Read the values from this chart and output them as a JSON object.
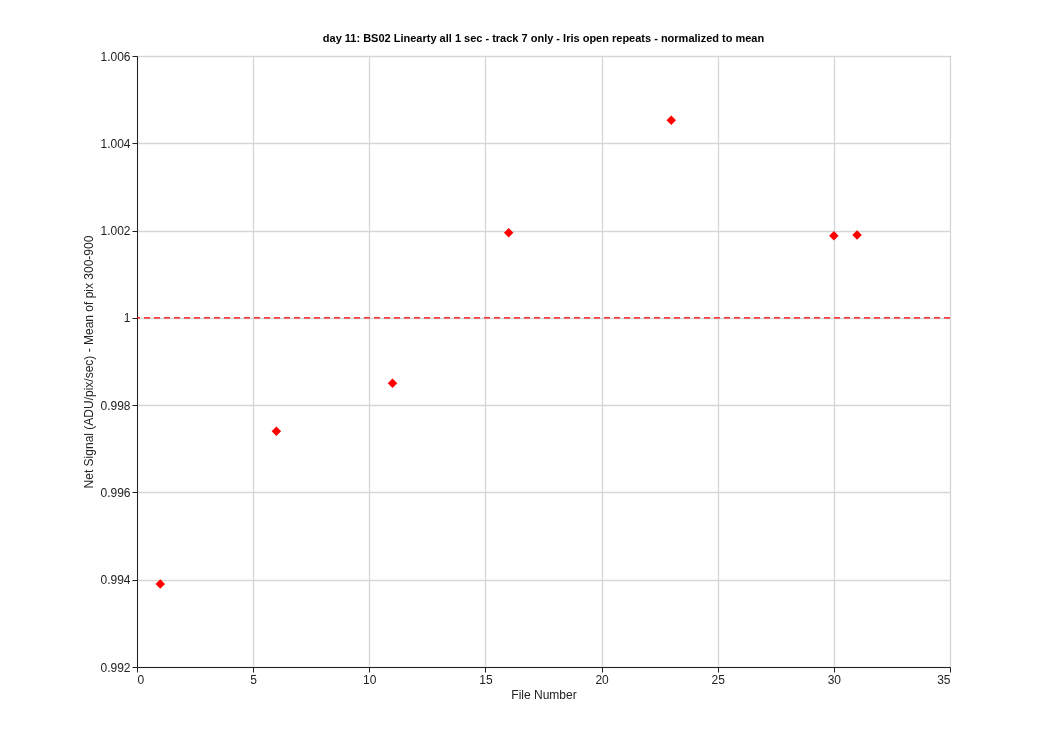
{
  "chart_data": {
    "type": "scatter",
    "title": "day 11: BS02   Linearty all 1 sec - track 7 only - Iris open repeats - normalized to mean",
    "xlabel": "File Number",
    "ylabel": "Net Signal (ADU/pix/sec) - Mean of pix 300-900",
    "x": [
      1,
      6,
      11,
      16,
      23,
      30,
      31
    ],
    "series": [
      {
        "color": "#ff0000",
        "values": [
          0.9939,
          0.9974,
          0.9985,
          1.00195,
          1.00453,
          1.00188,
          1.0019
        ]
      }
    ],
    "xlim": [
      0,
      35
    ],
    "xticks": [
      0,
      5,
      10,
      15,
      20,
      25,
      30,
      35
    ],
    "ylim": [
      0.992,
      1.006
    ],
    "yticks": [
      0.992,
      0.994,
      0.996,
      0.998,
      1,
      1.002,
      1.004,
      1.006
    ],
    "ref_lines": [
      {
        "axis": "y",
        "value": 1,
        "color": "#ff0000",
        "line_style": "dashed"
      }
    ],
    "grid": true,
    "marker": "diamond"
  }
}
